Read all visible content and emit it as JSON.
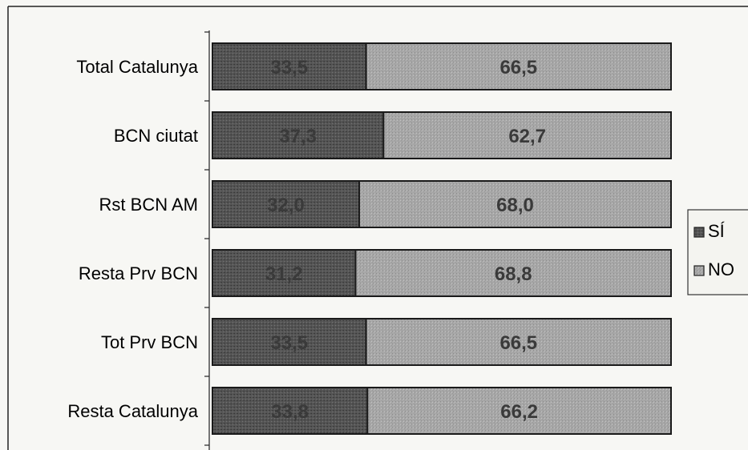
{
  "chart_data": {
    "type": "bar",
    "orientation": "horizontal",
    "stacked": true,
    "categories": [
      "Total Catalunya",
      "BCN ciutat",
      "Rst BCN AM",
      "Resta Prv BCN",
      "Tot Prv BCN",
      "Resta Catalunya"
    ],
    "series": [
      {
        "name": "SÍ",
        "values": [
          33.5,
          37.3,
          32.0,
          31.2,
          33.5,
          33.8
        ],
        "labels": [
          "33,5",
          "37,3",
          "32,0",
          "31,2",
          "33,5",
          "33,8"
        ],
        "color": "#5a5a5a"
      },
      {
        "name": "NO",
        "values": [
          66.5,
          62.7,
          68.0,
          68.8,
          66.5,
          66.2
        ],
        "labels": [
          "66,5",
          "62,7",
          "68,0",
          "68,8",
          "66,5",
          "66,2"
        ],
        "color": "#a9a9a9"
      }
    ],
    "xlim": [
      0,
      100
    ],
    "grid": false,
    "legend_position": "right"
  }
}
